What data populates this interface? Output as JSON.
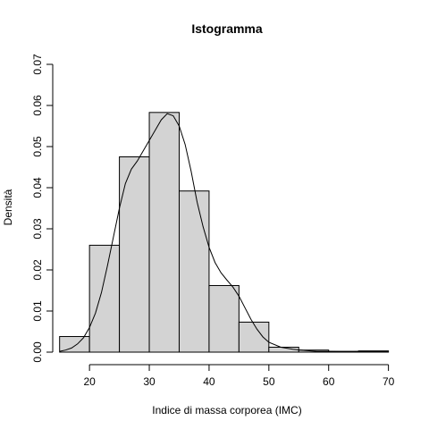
{
  "chart_data": {
    "type": "bar",
    "title": "Istogramma",
    "xlabel": "Indice di massa corporea (IMC)",
    "ylabel": "Densità",
    "xlim": [
      14,
      72
    ],
    "ylim": [
      0,
      0.07
    ],
    "x_ticks": [
      20,
      30,
      40,
      50,
      60,
      70
    ],
    "y_ticks": [
      0.0,
      0.01,
      0.02,
      0.03,
      0.04,
      0.05,
      0.06,
      0.07
    ],
    "y_tick_labels": [
      "0.00",
      "0.01",
      "0.02",
      "0.03",
      "0.04",
      "0.05",
      "0.06",
      "0.07"
    ],
    "bins": [
      {
        "from": 15,
        "to": 20,
        "density": 0.0038
      },
      {
        "from": 20,
        "to": 25,
        "density": 0.026
      },
      {
        "from": 25,
        "to": 30,
        "density": 0.0475
      },
      {
        "from": 30,
        "to": 35,
        "density": 0.0583
      },
      {
        "from": 35,
        "to": 40,
        "density": 0.0392
      },
      {
        "from": 40,
        "to": 45,
        "density": 0.0162
      },
      {
        "from": 45,
        "to": 50,
        "density": 0.0073
      },
      {
        "from": 50,
        "to": 55,
        "density": 0.0012
      },
      {
        "from": 55,
        "to": 60,
        "density": 0.0005
      },
      {
        "from": 60,
        "to": 65,
        "density": 0.0002
      },
      {
        "from": 65,
        "to": 70,
        "density": 0.0003
      }
    ],
    "density_curve": {
      "x": [
        15,
        16,
        17,
        18,
        19,
        20,
        21,
        22,
        23,
        24,
        25,
        26,
        27,
        28,
        29,
        30,
        31,
        32,
        33,
        34,
        35,
        36,
        37,
        38,
        39,
        40,
        41,
        42,
        43,
        44,
        45,
        46,
        47,
        48,
        49,
        50,
        52,
        54,
        56,
        58,
        60,
        62,
        64,
        66,
        68,
        70
      ],
      "y": [
        0.0002,
        0.0005,
        0.001,
        0.002,
        0.0035,
        0.006,
        0.0095,
        0.0145,
        0.021,
        0.028,
        0.035,
        0.041,
        0.0445,
        0.0465,
        0.049,
        0.0515,
        0.054,
        0.0565,
        0.058,
        0.0575,
        0.055,
        0.0505,
        0.044,
        0.0365,
        0.0305,
        0.0255,
        0.0218,
        0.0193,
        0.0175,
        0.0158,
        0.0136,
        0.0108,
        0.008,
        0.0056,
        0.0037,
        0.0024,
        0.0012,
        0.0007,
        0.0004,
        0.0002,
        0.0002,
        0.0001,
        0.0001,
        0.0002,
        0.0002,
        0.0001
      ]
    },
    "grid": false,
    "legend": "none",
    "bar_fill": "#d3d3d3",
    "bar_stroke": "#000000",
    "curve_color": "#000000"
  }
}
